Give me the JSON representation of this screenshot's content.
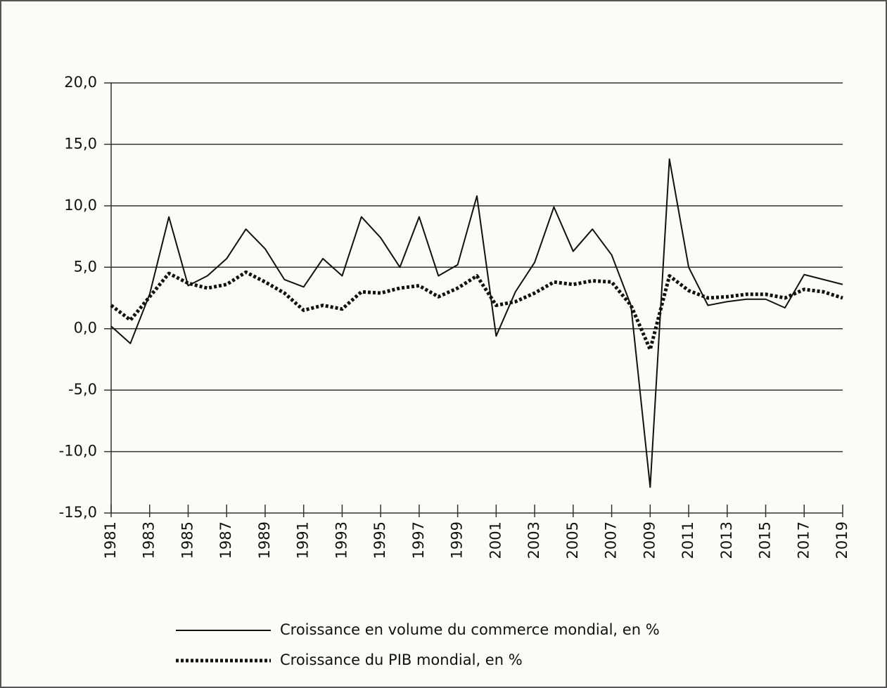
{
  "chart_data": {
    "type": "line",
    "x": [
      1981,
      1982,
      1983,
      1984,
      1985,
      1986,
      1987,
      1988,
      1989,
      1990,
      1991,
      1992,
      1993,
      1994,
      1995,
      1996,
      1997,
      1998,
      1999,
      2000,
      2001,
      2002,
      2003,
      2004,
      2005,
      2006,
      2007,
      2008,
      2009,
      2010,
      2011,
      2012,
      2013,
      2014,
      2015,
      2016,
      2017,
      2018,
      2019
    ],
    "series": [
      {
        "name": "Croissance en volume du commerce mondial, en %",
        "color": "#111111",
        "dash": "solid",
        "values": [
          0.2,
          -1.2,
          2.8,
          9.1,
          3.5,
          4.3,
          5.7,
          8.1,
          6.5,
          4.0,
          3.4,
          5.7,
          4.3,
          9.1,
          7.4,
          5.0,
          9.1,
          4.3,
          5.2,
          10.8,
          -0.6,
          3.0,
          5.4,
          9.9,
          6.3,
          8.1,
          6.0,
          1.9,
          -12.9,
          13.8,
          5.0,
          1.9,
          2.2,
          2.4,
          2.4,
          1.7,
          4.4,
          4.0,
          3.6
        ]
      },
      {
        "name": "Croissance du PIB mondial, en %",
        "color": "#111111",
        "dash": "dotted",
        "values": [
          1.9,
          0.7,
          2.6,
          4.5,
          3.7,
          3.3,
          3.6,
          4.6,
          3.8,
          2.9,
          1.5,
          1.9,
          1.6,
          3.0,
          2.9,
          3.3,
          3.5,
          2.6,
          3.3,
          4.3,
          1.9,
          2.2,
          2.9,
          3.8,
          3.6,
          3.9,
          3.8,
          1.9,
          -1.7,
          4.3,
          3.1,
          2.5,
          2.6,
          2.8,
          2.8,
          2.5,
          3.2,
          3.0,
          2.5
        ]
      }
    ],
    "xlim": [
      1981,
      2019
    ],
    "xticks": [
      1981,
      1983,
      1985,
      1987,
      1989,
      1991,
      1993,
      1995,
      1997,
      1999,
      2001,
      2003,
      2005,
      2007,
      2009,
      2011,
      2013,
      2015,
      2017,
      2019
    ],
    "ylim": [
      -15,
      20
    ],
    "yticks": [
      {
        "value": -15,
        "label": "-15,0"
      },
      {
        "value": -10,
        "label": "-10,0"
      },
      {
        "value": -5,
        "label": "-5,0"
      },
      {
        "value": 0,
        "label": "0,0"
      },
      {
        "value": 5,
        "label": "5,0"
      },
      {
        "value": 10,
        "label": "10,0"
      },
      {
        "value": 15,
        "label": "15,0"
      },
      {
        "value": 20,
        "label": "20,0"
      }
    ],
    "grid": true
  }
}
